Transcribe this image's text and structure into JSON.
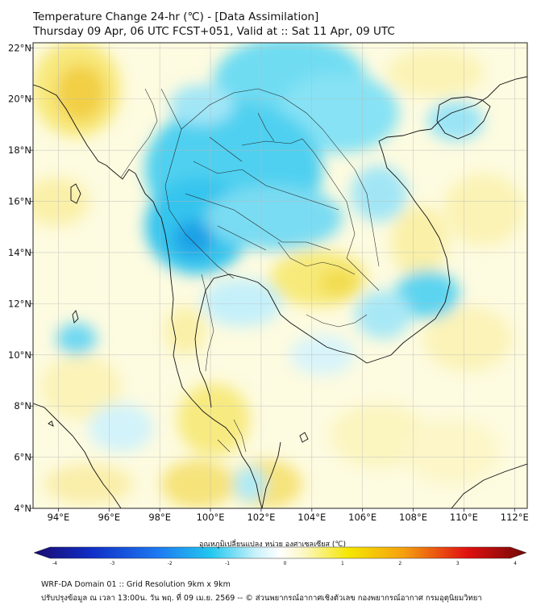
{
  "header": {
    "title_line1": "Temperature Change 24-hr (℃) - [Data Assimilation]",
    "title_line2": "Thursday 09 Apr, 06 UTC FCST+051, Valid at :: Sat 11 Apr, 09 UTC"
  },
  "map": {
    "lon_ticks": [
      "94°E",
      "96°E",
      "98°E",
      "100°E",
      "102°E",
      "104°E",
      "106°E",
      "108°E",
      "110°E",
      "112°E"
    ],
    "lat_ticks": [
      "22°N",
      "20°N",
      "18°N",
      "16°N",
      "14°N",
      "12°N",
      "10°N",
      "8°N",
      "6°N",
      "4°N"
    ],
    "lon_range": [
      93,
      112.5
    ],
    "lat_range": [
      4,
      22.2
    ]
  },
  "colorbar": {
    "label": "อุณหภูมิเปลี่ยนแปลง หน่วย องศาเซลเซียส (℃)",
    "ticks": [
      "-4",
      "-3",
      "-2",
      "-1",
      "0",
      "1",
      "2",
      "3",
      "4"
    ],
    "min": -4,
    "max": 4,
    "colors": {
      "dark_blue": "#1a0a70",
      "blue": "#1e50e0",
      "cyan": "#22c8f0",
      "pale_cyan": "#c8f2fa",
      "white": "#ffffff",
      "pale_yellow": "#fcf7c0",
      "yellow": "#f5e600",
      "orange": "#f59010",
      "red": "#e01010",
      "dark_red": "#700808"
    }
  },
  "footer": {
    "line1": "WRF-DA Domain 01 :: Grid Resolution 9km x 9km",
    "line2": "ปรับปรุงข้อมูล ณ เวลา 13:00น. วัน พฤ. ที่ 09 เม.ย. 2569 -- © ส่วนพยากรณ์อากาศเชิงตัวเลข กองพยากรณ์อากาศ กรมอุตุนิยมวิทยา"
  }
}
